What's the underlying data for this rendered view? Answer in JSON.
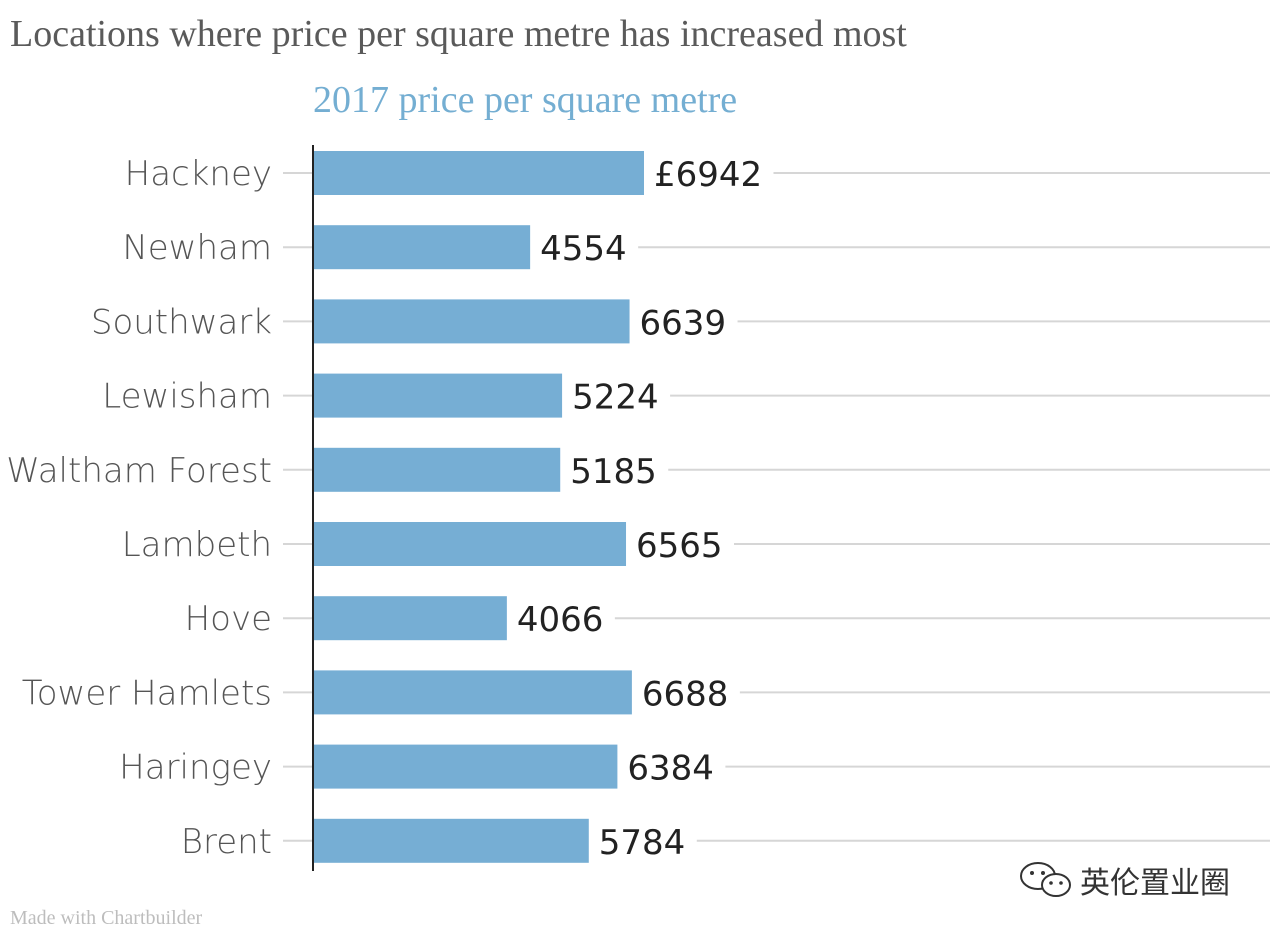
{
  "title": "Locations where price per square metre has increased most",
  "footer": {
    "credit": "Made with Chartbuilder",
    "watermark_text": "英伦置业圈",
    "watermark_icon": "wechat-icon"
  },
  "colors": {
    "bar": "#76aed4",
    "subtitle": "#74aed2",
    "gridline": "#d6d6d6",
    "axis": "#222222"
  },
  "chart_data": {
    "type": "bar",
    "orientation": "horizontal",
    "title": "2017 price per square metre",
    "value_prefix_first": "£",
    "categories": [
      "Hackney",
      "Newham",
      "Southwark",
      "Lewisham",
      "Waltham Forest",
      "Lambeth",
      "Hove",
      "Tower Hamlets",
      "Haringey",
      "Brent"
    ],
    "value_labels": [
      "£6942",
      "4554",
      "6639",
      "5224",
      "5185",
      "6565",
      "4066",
      "6688",
      "6384",
      "5784"
    ],
    "series": [
      {
        "values": [
          6942,
          4554,
          6639,
          5224,
          5185,
          6565,
          4066,
          6688,
          6384,
          5784
        ]
      }
    ],
    "xlim": [
      0,
      20000
    ],
    "grid": true,
    "legend": "none"
  }
}
